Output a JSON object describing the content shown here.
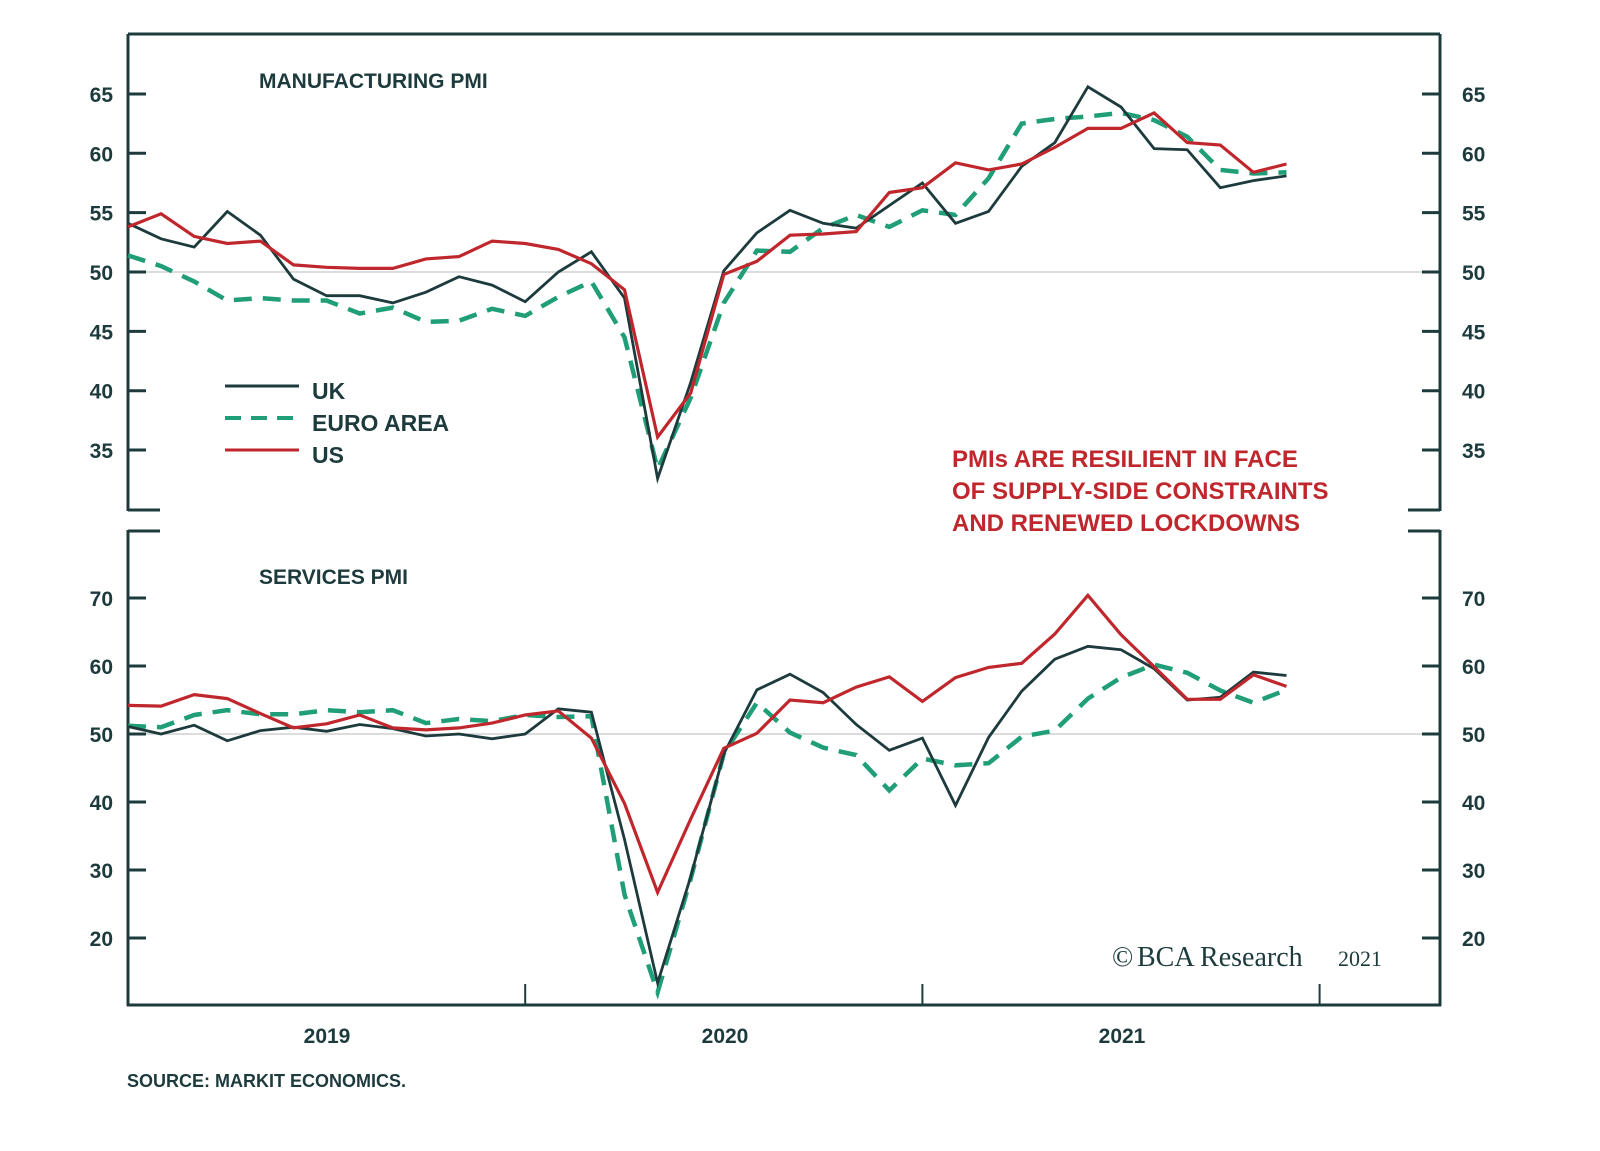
{
  "chart_data": [
    {
      "type": "line",
      "title": "MANUFACTURING PMI",
      "xlabel": "",
      "ylabel": "",
      "x": [
        "2019-01",
        "2019-02",
        "2019-03",
        "2019-04",
        "2019-05",
        "2019-06",
        "2019-07",
        "2019-08",
        "2019-09",
        "2019-10",
        "2019-11",
        "2019-12",
        "2020-01",
        "2020-02",
        "2020-03",
        "2020-04",
        "2020-05",
        "2020-06",
        "2020-07",
        "2020-08",
        "2020-09",
        "2020-10",
        "2020-11",
        "2020-12",
        "2021-01",
        "2021-02",
        "2021-03",
        "2021-04",
        "2021-05",
        "2021-06",
        "2021-07",
        "2021-08",
        "2021-09",
        "2021-10",
        "2021-11",
        "2021-12"
      ],
      "ylim": [
        30,
        70
      ],
      "yticks": [
        35,
        40,
        45,
        50,
        55,
        60,
        65
      ],
      "reference_line": 50,
      "grid": false,
      "legend": "left",
      "series": [
        {
          "name": "UK",
          "style": "solid",
          "color": "#1d3b3d",
          "values": [
            54.1,
            52.8,
            52.1,
            55.1,
            53.1,
            49.4,
            48.0,
            48.0,
            47.4,
            48.3,
            49.6,
            48.9,
            47.5,
            50.0,
            51.7,
            47.8,
            32.6,
            40.7,
            50.1,
            53.3,
            55.2,
            54.1,
            53.7,
            55.6,
            57.5,
            54.1,
            55.1,
            58.9,
            60.9,
            65.6,
            63.9,
            60.4,
            60.3,
            57.1,
            57.7,
            58.1
          ]
        },
        {
          "name": "EURO AREA",
          "style": "dashed",
          "color": "#1f9e77",
          "values": [
            51.4,
            50.5,
            49.2,
            47.6,
            47.8,
            47.6,
            47.6,
            46.5,
            47.0,
            45.8,
            45.9,
            46.9,
            46.3,
            47.9,
            49.2,
            44.5,
            33.4,
            39.4,
            47.4,
            51.8,
            51.7,
            53.7,
            54.8,
            53.8,
            55.2,
            54.8,
            57.9,
            62.5,
            62.9,
            63.1,
            63.4,
            62.8,
            61.4,
            58.6,
            58.3,
            58.4
          ]
        },
        {
          "name": "US",
          "style": "solid",
          "color": "#c0272d",
          "values": [
            53.8,
            54.9,
            53.0,
            52.4,
            52.6,
            50.6,
            50.4,
            50.3,
            50.3,
            51.1,
            51.3,
            52.6,
            52.4,
            51.9,
            50.7,
            48.5,
            36.1,
            39.8,
            49.8,
            50.9,
            53.1,
            53.2,
            53.4,
            56.7,
            57.1,
            59.2,
            58.6,
            59.1,
            60.5,
            62.1,
            62.1,
            63.4,
            60.9,
            60.7,
            58.4,
            59.1
          ]
        }
      ]
    },
    {
      "type": "line",
      "title": "SERVICES PMI",
      "xlabel": "",
      "ylabel": "",
      "x": [
        "2019-01",
        "2019-02",
        "2019-03",
        "2019-04",
        "2019-05",
        "2019-06",
        "2019-07",
        "2019-08",
        "2019-09",
        "2019-10",
        "2019-11",
        "2019-12",
        "2020-01",
        "2020-02",
        "2020-03",
        "2020-04",
        "2020-05",
        "2020-06",
        "2020-07",
        "2020-08",
        "2020-09",
        "2020-10",
        "2020-11",
        "2020-12",
        "2021-01",
        "2021-02",
        "2021-03",
        "2021-04",
        "2021-05",
        "2021-06",
        "2021-07",
        "2021-08",
        "2021-09",
        "2021-10",
        "2021-11",
        "2021-12"
      ],
      "ylim": [
        10,
        80
      ],
      "yticks": [
        20,
        30,
        40,
        50,
        60,
        70
      ],
      "reference_line": 50,
      "grid": false,
      "legend": "none",
      "series": [
        {
          "name": "UK",
          "style": "solid",
          "color": "#1d3b3d",
          "values": [
            51.1,
            50.0,
            51.3,
            49.0,
            50.5,
            51.0,
            50.4,
            51.4,
            50.8,
            49.7,
            50.0,
            49.3,
            50.0,
            53.7,
            53.2,
            34.5,
            13.4,
            29.0,
            47.1,
            56.5,
            58.8,
            56.1,
            51.4,
            47.6,
            49.4,
            39.5,
            49.5,
            56.3,
            61.0,
            62.9,
            62.4,
            59.6,
            55.0,
            55.4,
            59.1,
            58.6
          ]
        },
        {
          "name": "EURO AREA",
          "style": "dashed",
          "color": "#1f9e77",
          "values": [
            51.2,
            51.0,
            52.8,
            53.5,
            52.9,
            52.9,
            53.5,
            53.2,
            53.5,
            51.6,
            52.2,
            51.9,
            52.8,
            52.5,
            52.6,
            26.4,
            12.0,
            28.7,
            47.1,
            54.6,
            50.2,
            48.0,
            46.9,
            41.7,
            46.4,
            45.4,
            45.7,
            49.6,
            50.5,
            55.2,
            58.3,
            60.2,
            59.0,
            56.4,
            54.6,
            56.5
          ]
        },
        {
          "name": "US",
          "style": "solid",
          "color": "#c0272d",
          "values": [
            54.2,
            54.1,
            55.8,
            55.2,
            53.0,
            50.9,
            51.5,
            52.8,
            50.9,
            50.6,
            50.9,
            51.6,
            52.8,
            53.4,
            49.4,
            39.8,
            26.7,
            37.5,
            47.9,
            50.1,
            55.0,
            54.6,
            56.9,
            58.4,
            54.8,
            58.3,
            59.8,
            60.4,
            64.7,
            70.4,
            64.6,
            59.9,
            55.1,
            55.1,
            58.7,
            57.0
          ]
        }
      ]
    }
  ],
  "x_axis": {
    "year_labels": [
      "2019",
      "2020",
      "2021"
    ],
    "year_ticks": [
      "2020",
      "2021",
      "2022"
    ]
  },
  "legend": {
    "items": [
      {
        "label": "UK"
      },
      {
        "label": "EURO AREA"
      },
      {
        "label": "US"
      }
    ]
  },
  "annotation": {
    "lines": [
      "PMIs ARE RESILIENT IN FACE",
      "OF SUPPLY-SIDE CONSTRAINTS",
      "AND RENEWED LOCKDOWNS"
    ]
  },
  "copyright": {
    "symbol": "©",
    "brand": "BCA Research",
    "year": "2021"
  },
  "source": "SOURCE: MARKIT ECONOMICS.",
  "colors": {
    "axis": "#1d3b3d",
    "uk": "#1d3b3d",
    "euro": "#1f9e77",
    "us": "#c0272d",
    "refline": "#c8c8c8"
  }
}
